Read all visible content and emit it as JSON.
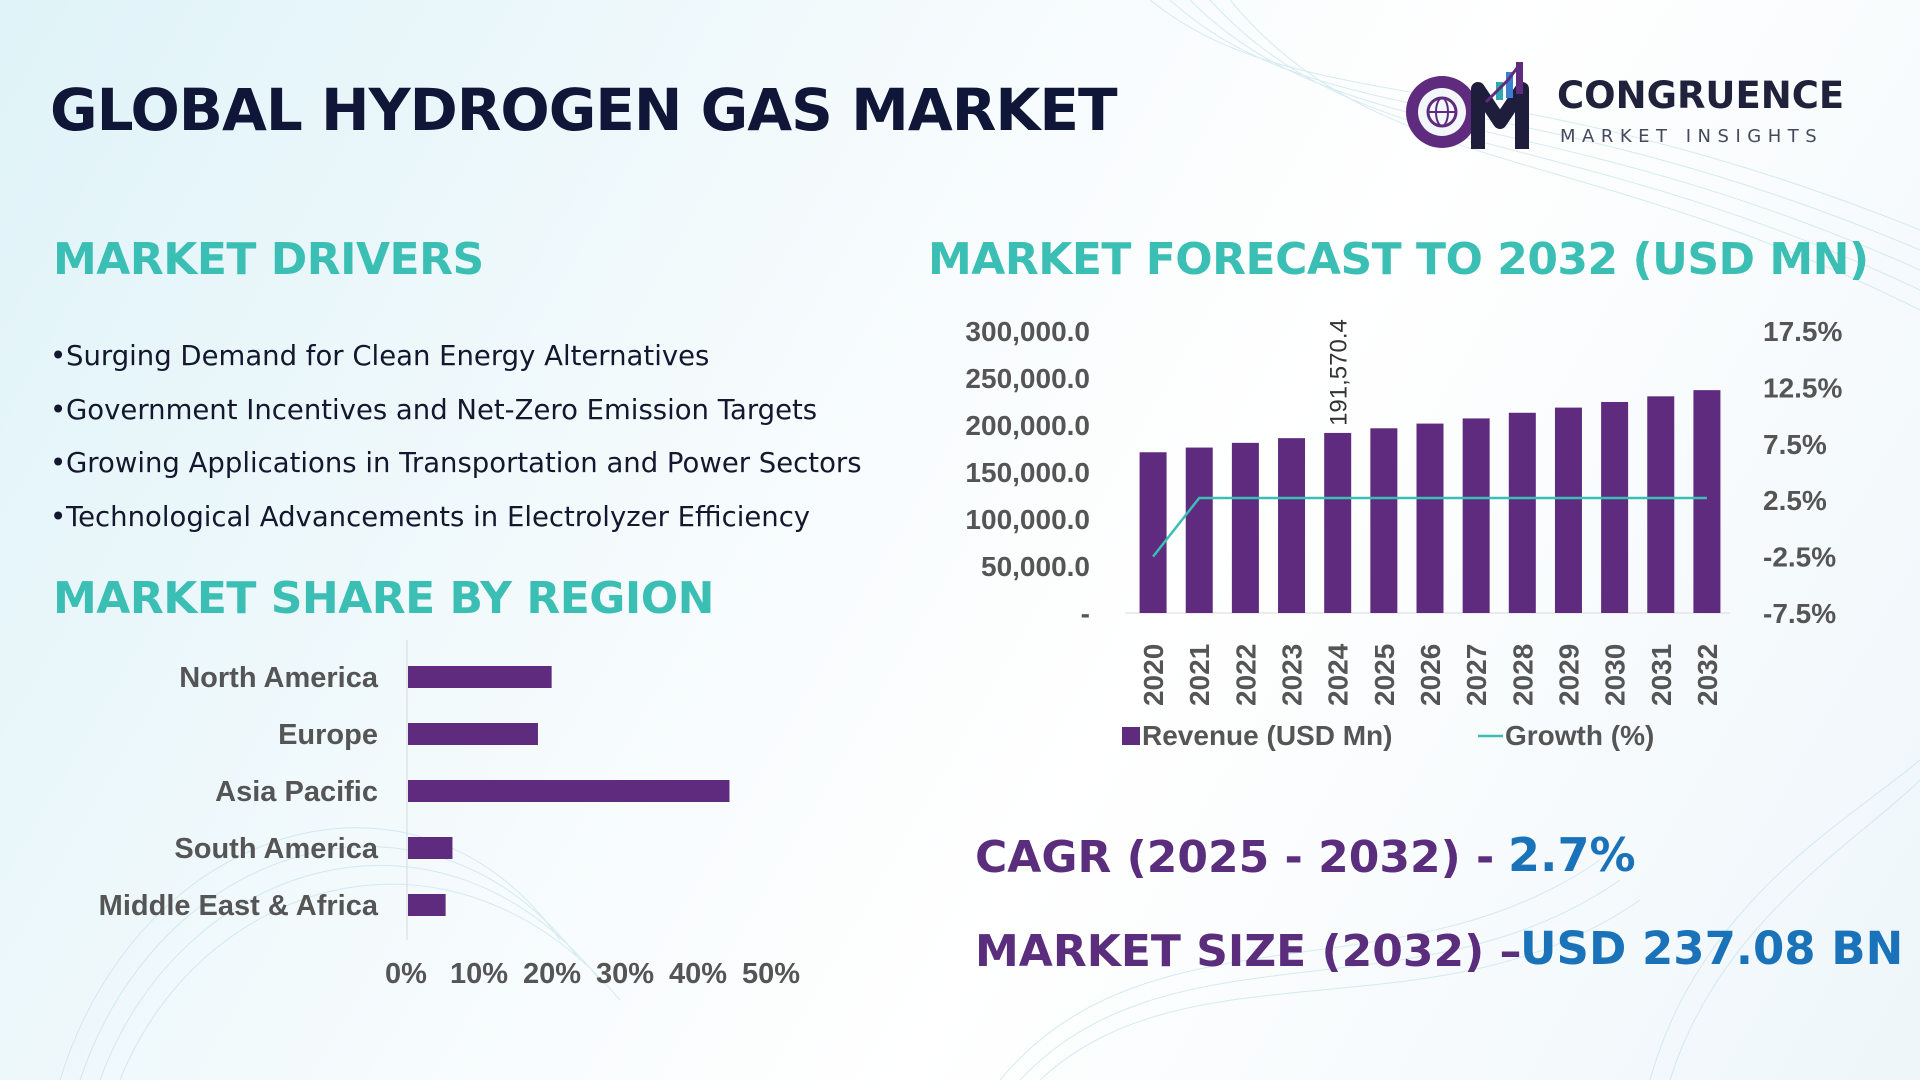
{
  "header": {
    "title": "GLOBAL HYDROGEN GAS MARKET",
    "brand_name": "CONGRUENCE",
    "brand_tagline": "MARKET INSIGHTS"
  },
  "drivers": {
    "title": "MARKET DRIVERS",
    "items": [
      "Surging Demand for Clean Energy Alternatives",
      "Government Incentives and Net-Zero Emission Targets",
      "Growing Applications in Transportation and Power Sectors",
      "Technological Advancements in Electrolyzer Efficiency"
    ]
  },
  "region": {
    "title": "MARKET SHARE BY REGION"
  },
  "forecast": {
    "title": "MARKET FORECAST TO 2032 (USD MN)"
  },
  "kpis": {
    "cagr_label": "CAGR (2025 - 2032) -",
    "cagr_value": "2.7%",
    "size_label": "MARKET SIZE (2032) –",
    "size_value": "USD 237.08 BN"
  },
  "colors": {
    "bar": "#5e2b7e",
    "line": "#3bbfb4",
    "section_title": "#3bbfb4",
    "kpi_label": "#5b2d7d",
    "kpi_value": "#1a73b8",
    "title": "#0f1638"
  },
  "chart_data": [
    {
      "type": "bar",
      "orientation": "horizontal",
      "categories": [
        "North America",
        "Europe",
        "Asia Pacific",
        "South America",
        "Middle East & Africa"
      ],
      "values": [
        21,
        19,
        47,
        6.5,
        5.5
      ],
      "xlim": [
        0,
        50
      ],
      "xticks": [
        "0%",
        "10%",
        "20%",
        "30%",
        "40%",
        "50%"
      ],
      "grid": false
    },
    {
      "type": "bar+line",
      "categories": [
        "2020",
        "2021",
        "2022",
        "2023",
        "2024",
        "2025",
        "2026",
        "2027",
        "2028",
        "2029",
        "2030",
        "2031",
        "2032"
      ],
      "series": [
        {
          "name": "Revenue (USD Mn)",
          "type": "bar",
          "axis": "left",
          "values": [
            171000,
            176000,
            181000,
            186000,
            191570.4,
            196500,
            201500,
            207000,
            213000,
            218500,
            224500,
            230500,
            237080
          ]
        },
        {
          "name": "Growth (%)",
          "type": "line",
          "axis": "right",
          "values": [
            -2.5,
            2.7,
            2.7,
            2.7,
            2.7,
            2.7,
            2.7,
            2.7,
            2.7,
            2.7,
            2.7,
            2.7,
            2.7
          ]
        }
      ],
      "data_labels": [
        {
          "category": "2024",
          "text": "191,570.4"
        }
      ],
      "y_left": {
        "range": [
          0,
          300000
        ],
        "ticks": [
          "-",
          "50,000.0",
          "100,000.0",
          "150,000.0",
          "200,000.0",
          "250,000.0",
          "300,000.0"
        ]
      },
      "y_right": {
        "range": [
          -7.5,
          17.5
        ],
        "ticks": [
          "-7.5%",
          "-2.5%",
          "2.5%",
          "7.5%",
          "12.5%",
          "17.5%"
        ]
      },
      "legend": "bottom",
      "grid": false
    }
  ]
}
